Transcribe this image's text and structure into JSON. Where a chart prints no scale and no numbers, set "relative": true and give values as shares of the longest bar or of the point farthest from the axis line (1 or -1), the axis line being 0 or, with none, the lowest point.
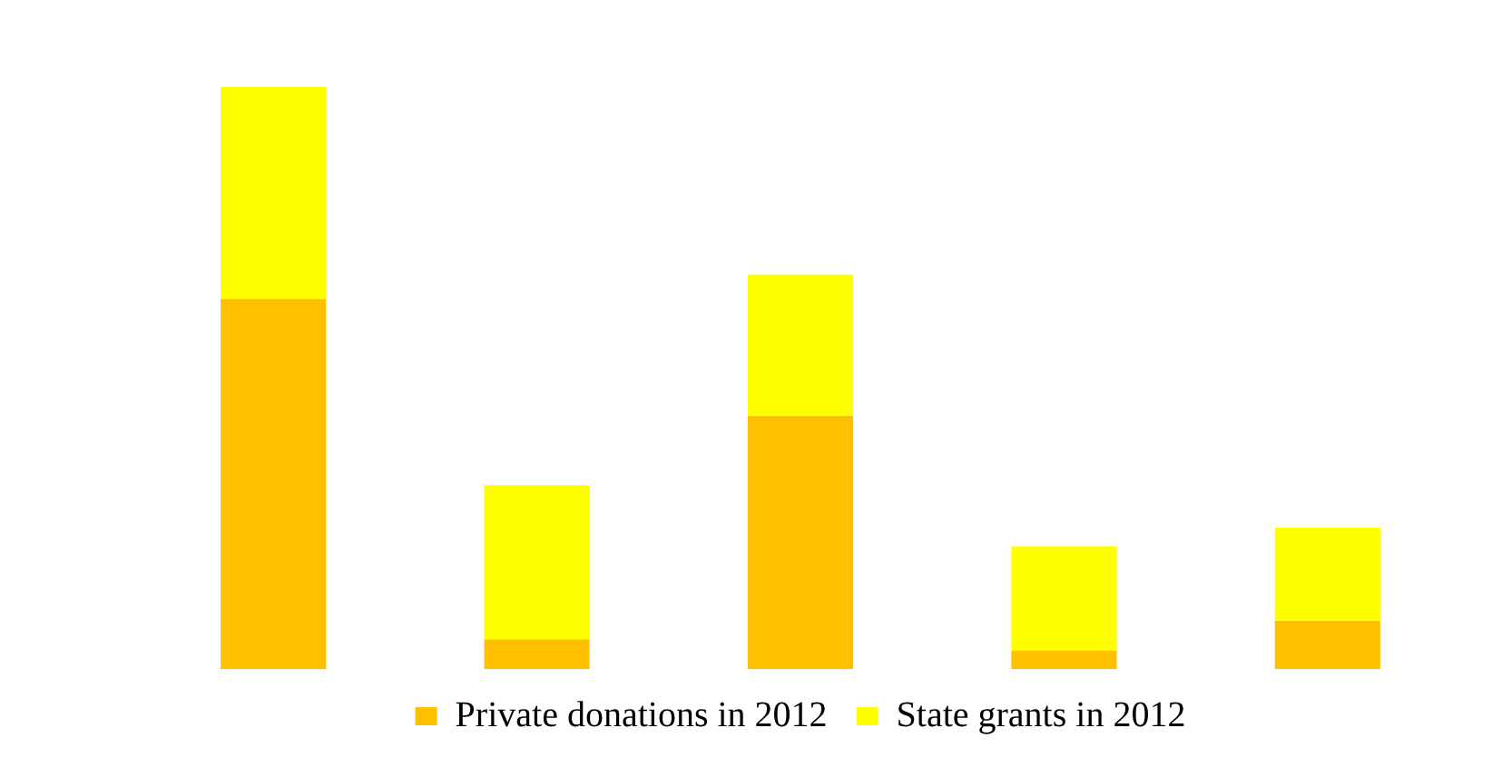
{
  "chart_data": {
    "type": "bar",
    "relative": true,
    "stacked": true,
    "legend": "bottom",
    "grid": false,
    "categories": [
      null,
      null,
      null,
      null,
      null
    ],
    "series": [
      {
        "name": "Private donations in 2012",
        "color": "#ffc000",
        "values": [
          0.636,
          0.051,
          0.435,
          0.032,
          0.083
        ]
      },
      {
        "name": "State grants in 2012",
        "color": "#ffff00",
        "values": [
          0.364,
          0.265,
          0.243,
          0.179,
          0.16
        ]
      }
    ]
  }
}
